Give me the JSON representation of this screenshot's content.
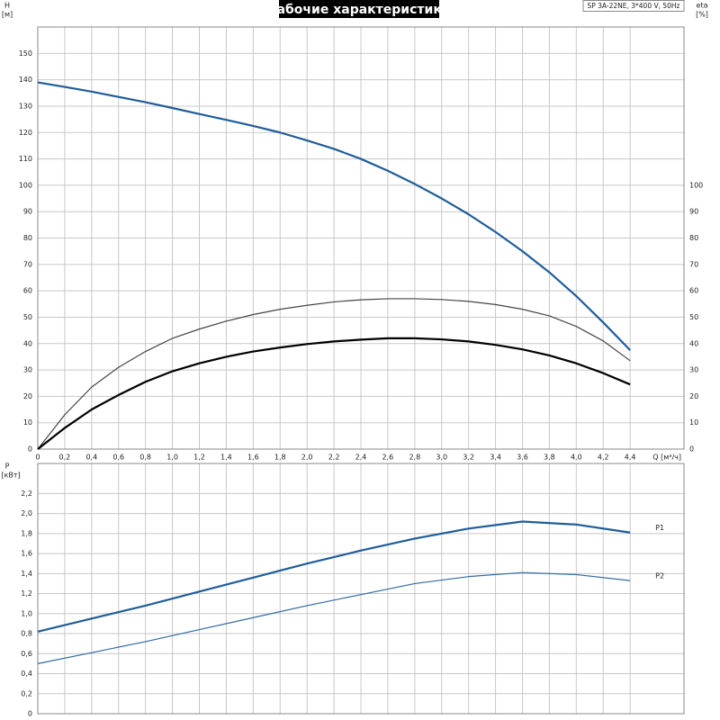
{
  "chart_data": [
    {
      "type": "line",
      "title": "Рабочие характеристики",
      "annotation": "SP 3A-22NE, 3*400 V, 50Hz",
      "ylabel": "H",
      "ylabel_unit": "[м]",
      "y2label": "eta",
      "y2label_unit": "[%]",
      "xlabel": "Q [м³/ч]",
      "x": [
        0,
        0.2,
        0.4,
        0.6,
        0.8,
        1.0,
        1.2,
        1.4,
        1.6,
        1.8,
        2.0,
        2.2,
        2.4,
        2.6,
        2.8,
        3.0,
        3.2,
        3.4,
        3.6,
        3.8,
        4.0,
        4.2,
        4.4
      ],
      "xlim": [
        0,
        4.8
      ],
      "xticks": [
        0,
        {
          "value": 0.2,
          "label": "0,2"
        },
        {
          "value": 0.4,
          "label": "0,4"
        },
        {
          "value": 0.6,
          "label": "0,6"
        },
        {
          "value": 0.8,
          "label": "0,8"
        },
        {
          "value": 1.0,
          "label": "1,0"
        },
        {
          "value": 1.2,
          "label": "1,2"
        },
        {
          "value": 1.4,
          "label": "1,4"
        },
        {
          "value": 1.6,
          "label": "1,6"
        },
        {
          "value": 1.8,
          "label": "1,8"
        },
        {
          "value": 2.0,
          "label": "2,0"
        },
        {
          "value": 2.2,
          "label": "2,2"
        },
        {
          "value": 2.4,
          "label": "2,4"
        },
        {
          "value": 2.6,
          "label": "2,6"
        },
        {
          "value": 2.8,
          "label": "2,8"
        },
        {
          "value": 3.0,
          "label": "3,0"
        },
        {
          "value": 3.2,
          "label": "3,2"
        },
        {
          "value": 3.4,
          "label": "3,4"
        },
        {
          "value": 3.6,
          "label": "3,6"
        },
        {
          "value": 3.8,
          "label": "3,8"
        },
        {
          "value": 4.0,
          "label": "4,0"
        },
        {
          "value": 4.2,
          "label": "4,2"
        },
        {
          "value": 4.4,
          "label": "4,4"
        }
      ],
      "ylim": [
        0,
        160
      ],
      "yticks": [
        0,
        10,
        20,
        30,
        40,
        50,
        60,
        70,
        80,
        90,
        100,
        110,
        120,
        130,
        140,
        150
      ],
      "y2lim": [
        0,
        160
      ],
      "y2ticks": [
        0,
        10,
        20,
        30,
        40,
        50,
        60,
        70,
        80,
        90,
        100
      ],
      "grid": true,
      "series": [
        {
          "color": "#1f5d99",
          "values": [
            139,
            137.3,
            135.5,
            133.5,
            131.5,
            129.3,
            127,
            124.8,
            122.5,
            120,
            117,
            113.8,
            110,
            105.5,
            100.5,
            95,
            89,
            82.3,
            75,
            67,
            58,
            48,
            37.5
          ]
        },
        {
          "color": "#444444",
          "axis": "y2",
          "values": [
            0,
            13,
            23.5,
            31,
            37,
            42,
            45.5,
            48.5,
            51,
            53,
            54.5,
            55.8,
            56.6,
            57,
            57,
            56.7,
            56,
            54.8,
            53,
            50.5,
            46.5,
            41,
            33.5
          ]
        },
        {
          "color": "#000000",
          "axis": "y2",
          "values": [
            0,
            8,
            15,
            20.5,
            25.5,
            29.5,
            32.5,
            35,
            37,
            38.5,
            39.8,
            40.8,
            41.5,
            42,
            42,
            41.6,
            40.8,
            39.5,
            37.8,
            35.5,
            32.5,
            28.8,
            24.5
          ]
        }
      ]
    },
    {
      "type": "line",
      "ylabel": "P",
      "ylabel_unit": "[кВт]",
      "x": [
        0,
        0.4,
        0.8,
        1.2,
        1.6,
        2.0,
        2.4,
        2.8,
        3.2,
        3.6,
        4.0,
        4.4
      ],
      "xlim": [
        0,
        4.8
      ],
      "ylim": [
        0,
        2.5
      ],
      "yticks": [
        0,
        {
          "value": 0.2,
          "label": "0,2"
        },
        {
          "value": 0.4,
          "label": "0,4"
        },
        {
          "value": 0.6,
          "label": "0,6"
        },
        {
          "value": 0.8,
          "label": "0,8"
        },
        {
          "value": 1.0,
          "label": "1,0"
        },
        {
          "value": 1.2,
          "label": "1,2"
        },
        {
          "value": 1.4,
          "label": "1,4"
        },
        {
          "value": 1.6,
          "label": "1,6"
        },
        {
          "value": 1.8,
          "label": "1,8"
        },
        {
          "value": 2.0,
          "label": "2,0"
        },
        {
          "value": 2.2,
          "label": "2,2"
        }
      ],
      "grid": true,
      "series": [
        {
          "name": "P1",
          "color": "#1f5d99",
          "values": [
            0.82,
            0.95,
            1.08,
            1.22,
            1.36,
            1.5,
            1.63,
            1.75,
            1.85,
            1.92,
            1.89,
            1.81
          ]
        },
        {
          "name": "P2",
          "color": "#2f6aa3",
          "values": [
            0.5,
            0.61,
            0.72,
            0.84,
            0.96,
            1.08,
            1.19,
            1.3,
            1.37,
            1.41,
            1.39,
            1.33
          ]
        }
      ]
    }
  ]
}
